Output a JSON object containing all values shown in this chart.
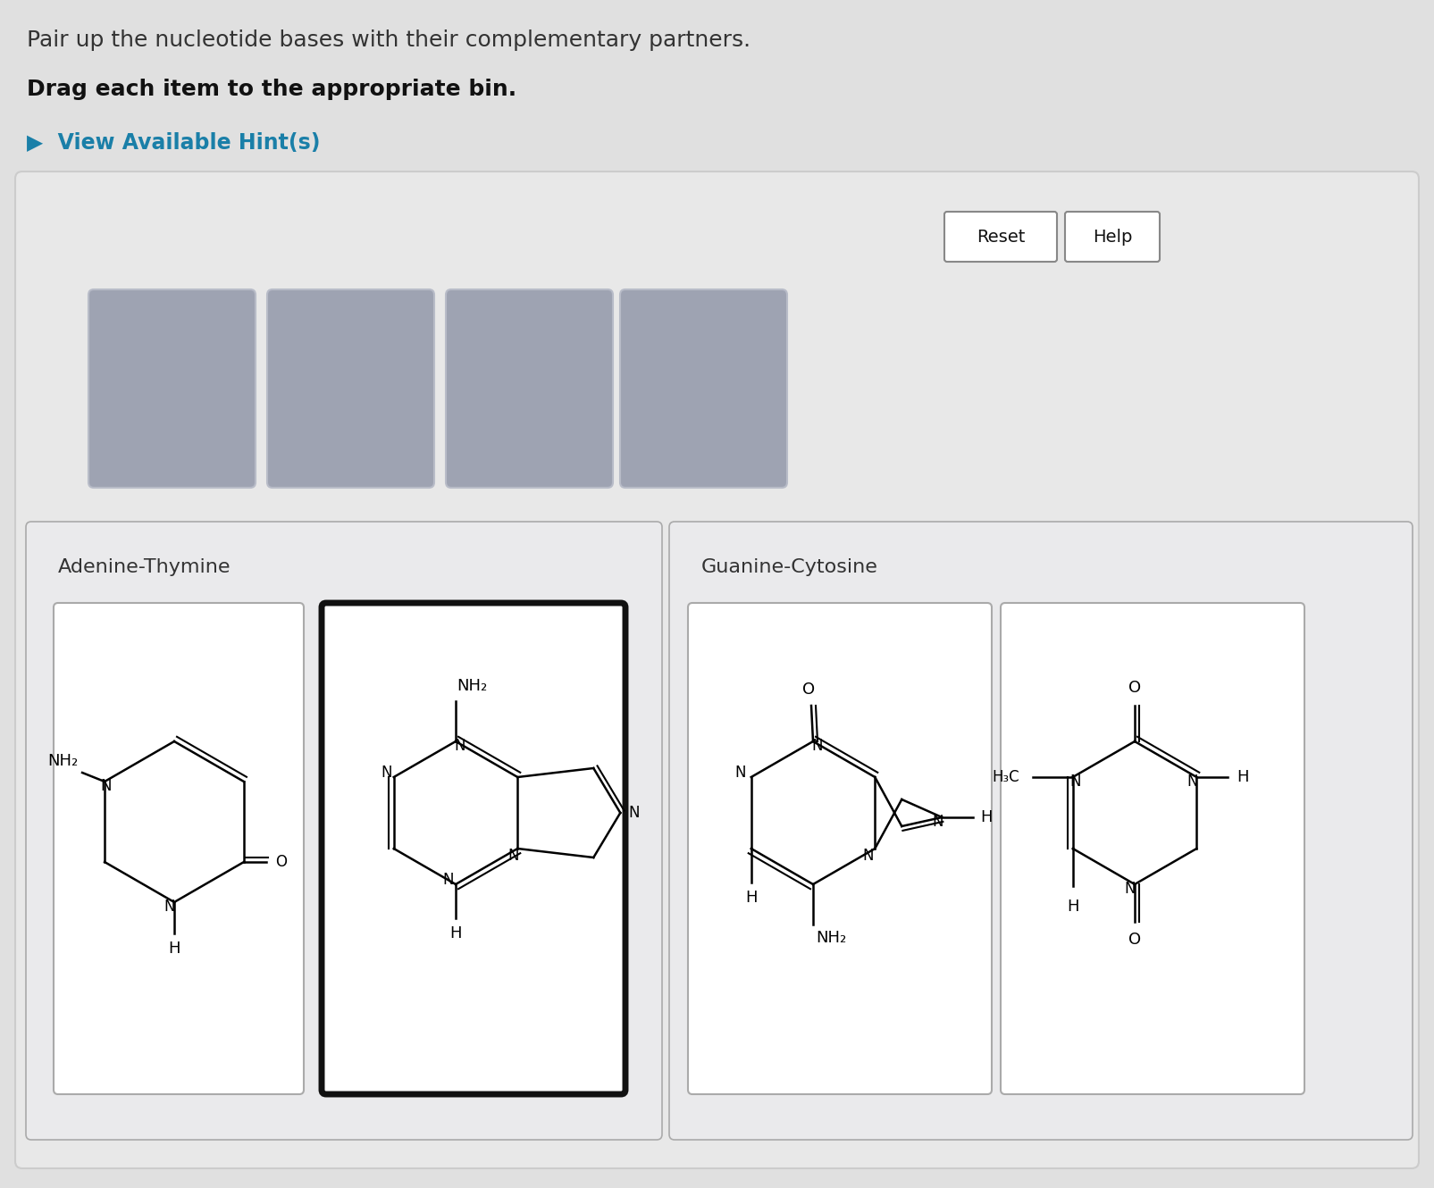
{
  "bg_color": "#e0e0e0",
  "panel_color": "#e8e8e8",
  "panel_border": "#cccccc",
  "title_text": "Pair up the nucleotide bases with their complementary partners.",
  "subtitle_text": "Drag each item to the appropriate bin.",
  "hint_text": "▶  View Available Hint(s)",
  "hint_color": "#1a7fa8",
  "title_fontsize": 18,
  "subtitle_fontsize": 18,
  "hint_fontsize": 17,
  "reset_text": "Reset",
  "help_text": "Help",
  "section_label_at": "Adenine-Thymine",
  "section_label_gc": "Guanine-Cytosine",
  "section_label_fontsize": 16,
  "grey_box_color": "#9ea3b2",
  "grey_box_border": "#b8bcc8",
  "card_border_normal": "#aaaaaa",
  "card_border_thick": "#111111"
}
